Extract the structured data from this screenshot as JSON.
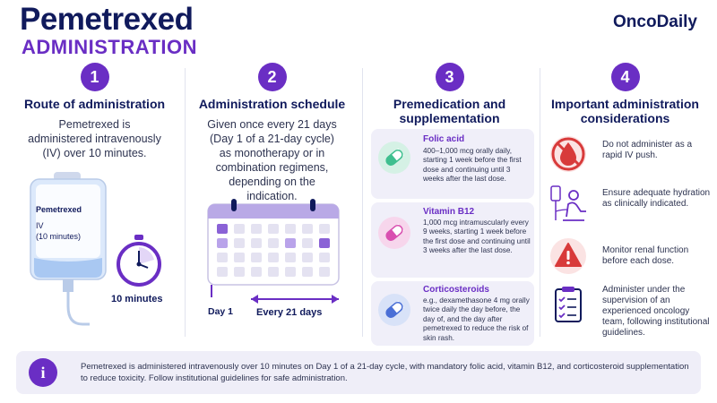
{
  "header": {
    "title": "Pemetrexed",
    "subtitle": "ADMINISTRATION",
    "brand": "OncoDaily"
  },
  "columns": [
    {
      "number": "1",
      "heading": "Route of administration",
      "text": "Pemetrexed is administered intravenously (IV) over 10 minutes.",
      "bag_title": "Pemetrexed",
      "bag_line2": "IV",
      "bag_line3": "(10 minutes)",
      "timer_label": "10 minutes"
    },
    {
      "number": "2",
      "heading": "Administration schedule",
      "text": "Given once every 21 days (Day 1 of a 21-day cycle) as monotherapy or in combination regimens, depending on the indication.",
      "day1_label": "Day 1",
      "interval_label": "Every 21 days"
    },
    {
      "number": "3",
      "heading": "Premedication and supplementation",
      "items": [
        {
          "title": "Folic acid",
          "text": "400–1,000 mcg orally daily, starting 1 week before the first dose and continuing until 3 weeks after the last dose."
        },
        {
          "title": "Vitamin B12",
          "text": "1,000 mcg intramuscularly every 9 weeks, starting 1 week before the first dose and continuing until 3 weeks after the last dose."
        },
        {
          "title": "Corticosteroids",
          "text": "e.g., dexamethasone 4 mg orally twice daily the day before, the day of, and the day after pemetrexed to reduce the risk of skin rash."
        }
      ]
    },
    {
      "number": "4",
      "heading": "Important administration considerations",
      "items": [
        {
          "icon": "no-iv-push-icon",
          "text": "Do not administer as a rapid IV push."
        },
        {
          "icon": "iv-hydration-icon",
          "text": "Ensure adequate hydration as clinically indicated."
        },
        {
          "icon": "warning-icon",
          "text": "Monitor renal function before each dose."
        },
        {
          "icon": "clipboard-checklist-icon",
          "text": "Administer under the supervision of an experienced oncology team, following institutional guidelines."
        }
      ]
    }
  ],
  "info": {
    "icon": "info-icon",
    "text": "Pemetrexed is administered intravenously over 10 minutes on Day 1 of a 21-day cycle, with mandatory folic acid, vitamin B12, and corticosteroid supplementation to reduce toxicity. Follow institutional guidelines for safe administration."
  },
  "colors": {
    "navy": "#101a5c",
    "purple": "#6a2ec4",
    "green": "#3fbf8f",
    "pink": "#d94fb0",
    "blue": "#4a6fd6",
    "red": "#d83a3a"
  }
}
